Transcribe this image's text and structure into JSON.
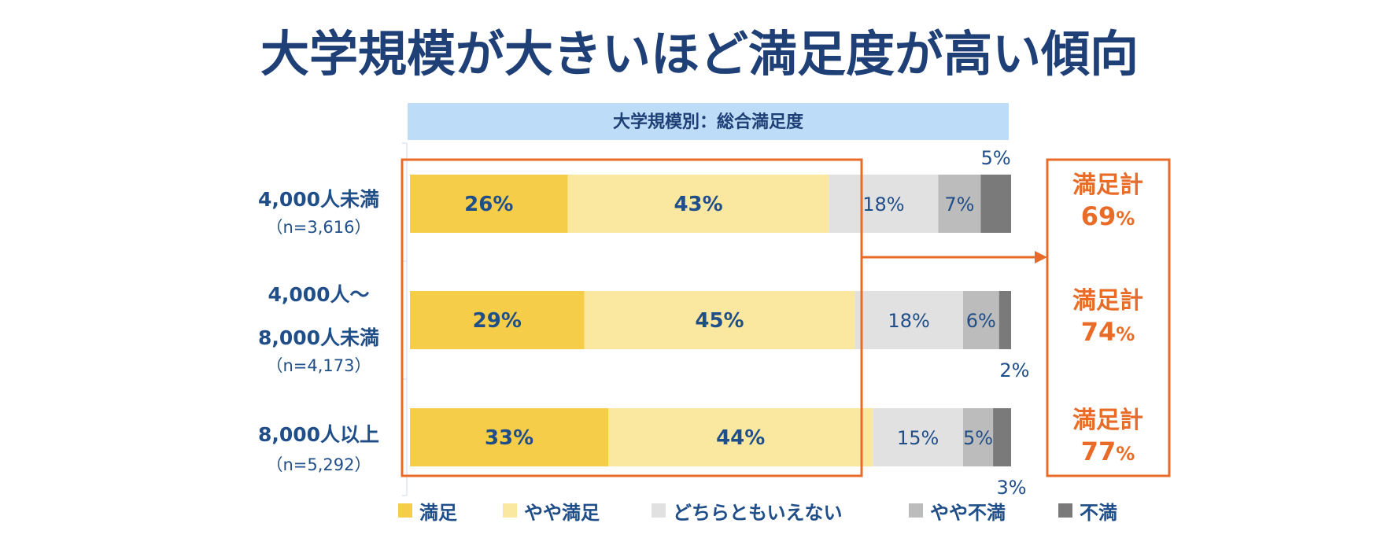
{
  "title": "大学規模が大きいほど満足度が高い傾向",
  "subtitle": "大学規模別：総合満足度",
  "colors": {
    "title": "#1f3f77",
    "subtitle_band": "#bddcf7",
    "label": "#1f4e89",
    "highlight": "#e86c27"
  },
  "chart_data": {
    "type": "bar",
    "orientation": "horizontal",
    "stacked": true,
    "percent_scale": [
      0,
      100
    ],
    "categories": [
      {
        "label_lines": [
          "4,000人未満"
        ],
        "n": "（n=3,616）"
      },
      {
        "label_lines": [
          "4,000人～",
          "8,000人未満"
        ],
        "n": "（n=4,173）"
      },
      {
        "label_lines": [
          "8,000人以上"
        ],
        "n": "（n=5,292）"
      }
    ],
    "series": [
      {
        "name": "満足",
        "color": "#f5cd48",
        "values": [
          26,
          29,
          33
        ],
        "labels": [
          "26%",
          "29%",
          "33%"
        ]
      },
      {
        "name": "やや満足",
        "color": "#fbe8a0",
        "values": [
          43,
          45,
          44
        ],
        "labels": [
          "43%",
          "45%",
          "44%"
        ]
      },
      {
        "name": "どちらともいえない",
        "color": "#e1e1e1",
        "values": [
          18,
          18,
          15
        ],
        "labels": [
          "18%",
          "18%",
          "15%"
        ]
      },
      {
        "name": "やや不満",
        "color": "#bcbcbc",
        "values": [
          7,
          6,
          5
        ],
        "labels": [
          "7%",
          "6%",
          "5%"
        ]
      },
      {
        "name": "不満",
        "color": "#7a7a7a",
        "values": [
          5,
          2,
          3
        ],
        "labels": [
          "5%",
          "2%",
          "3%"
        ]
      }
    ],
    "totals": [
      {
        "label": "満足計",
        "value": "69",
        "unit": "%"
      },
      {
        "label": "満足計",
        "value": "74",
        "unit": "%"
      },
      {
        "label": "満足計",
        "value": "77",
        "unit": "%"
      }
    ],
    "legend_position": "bottom"
  }
}
